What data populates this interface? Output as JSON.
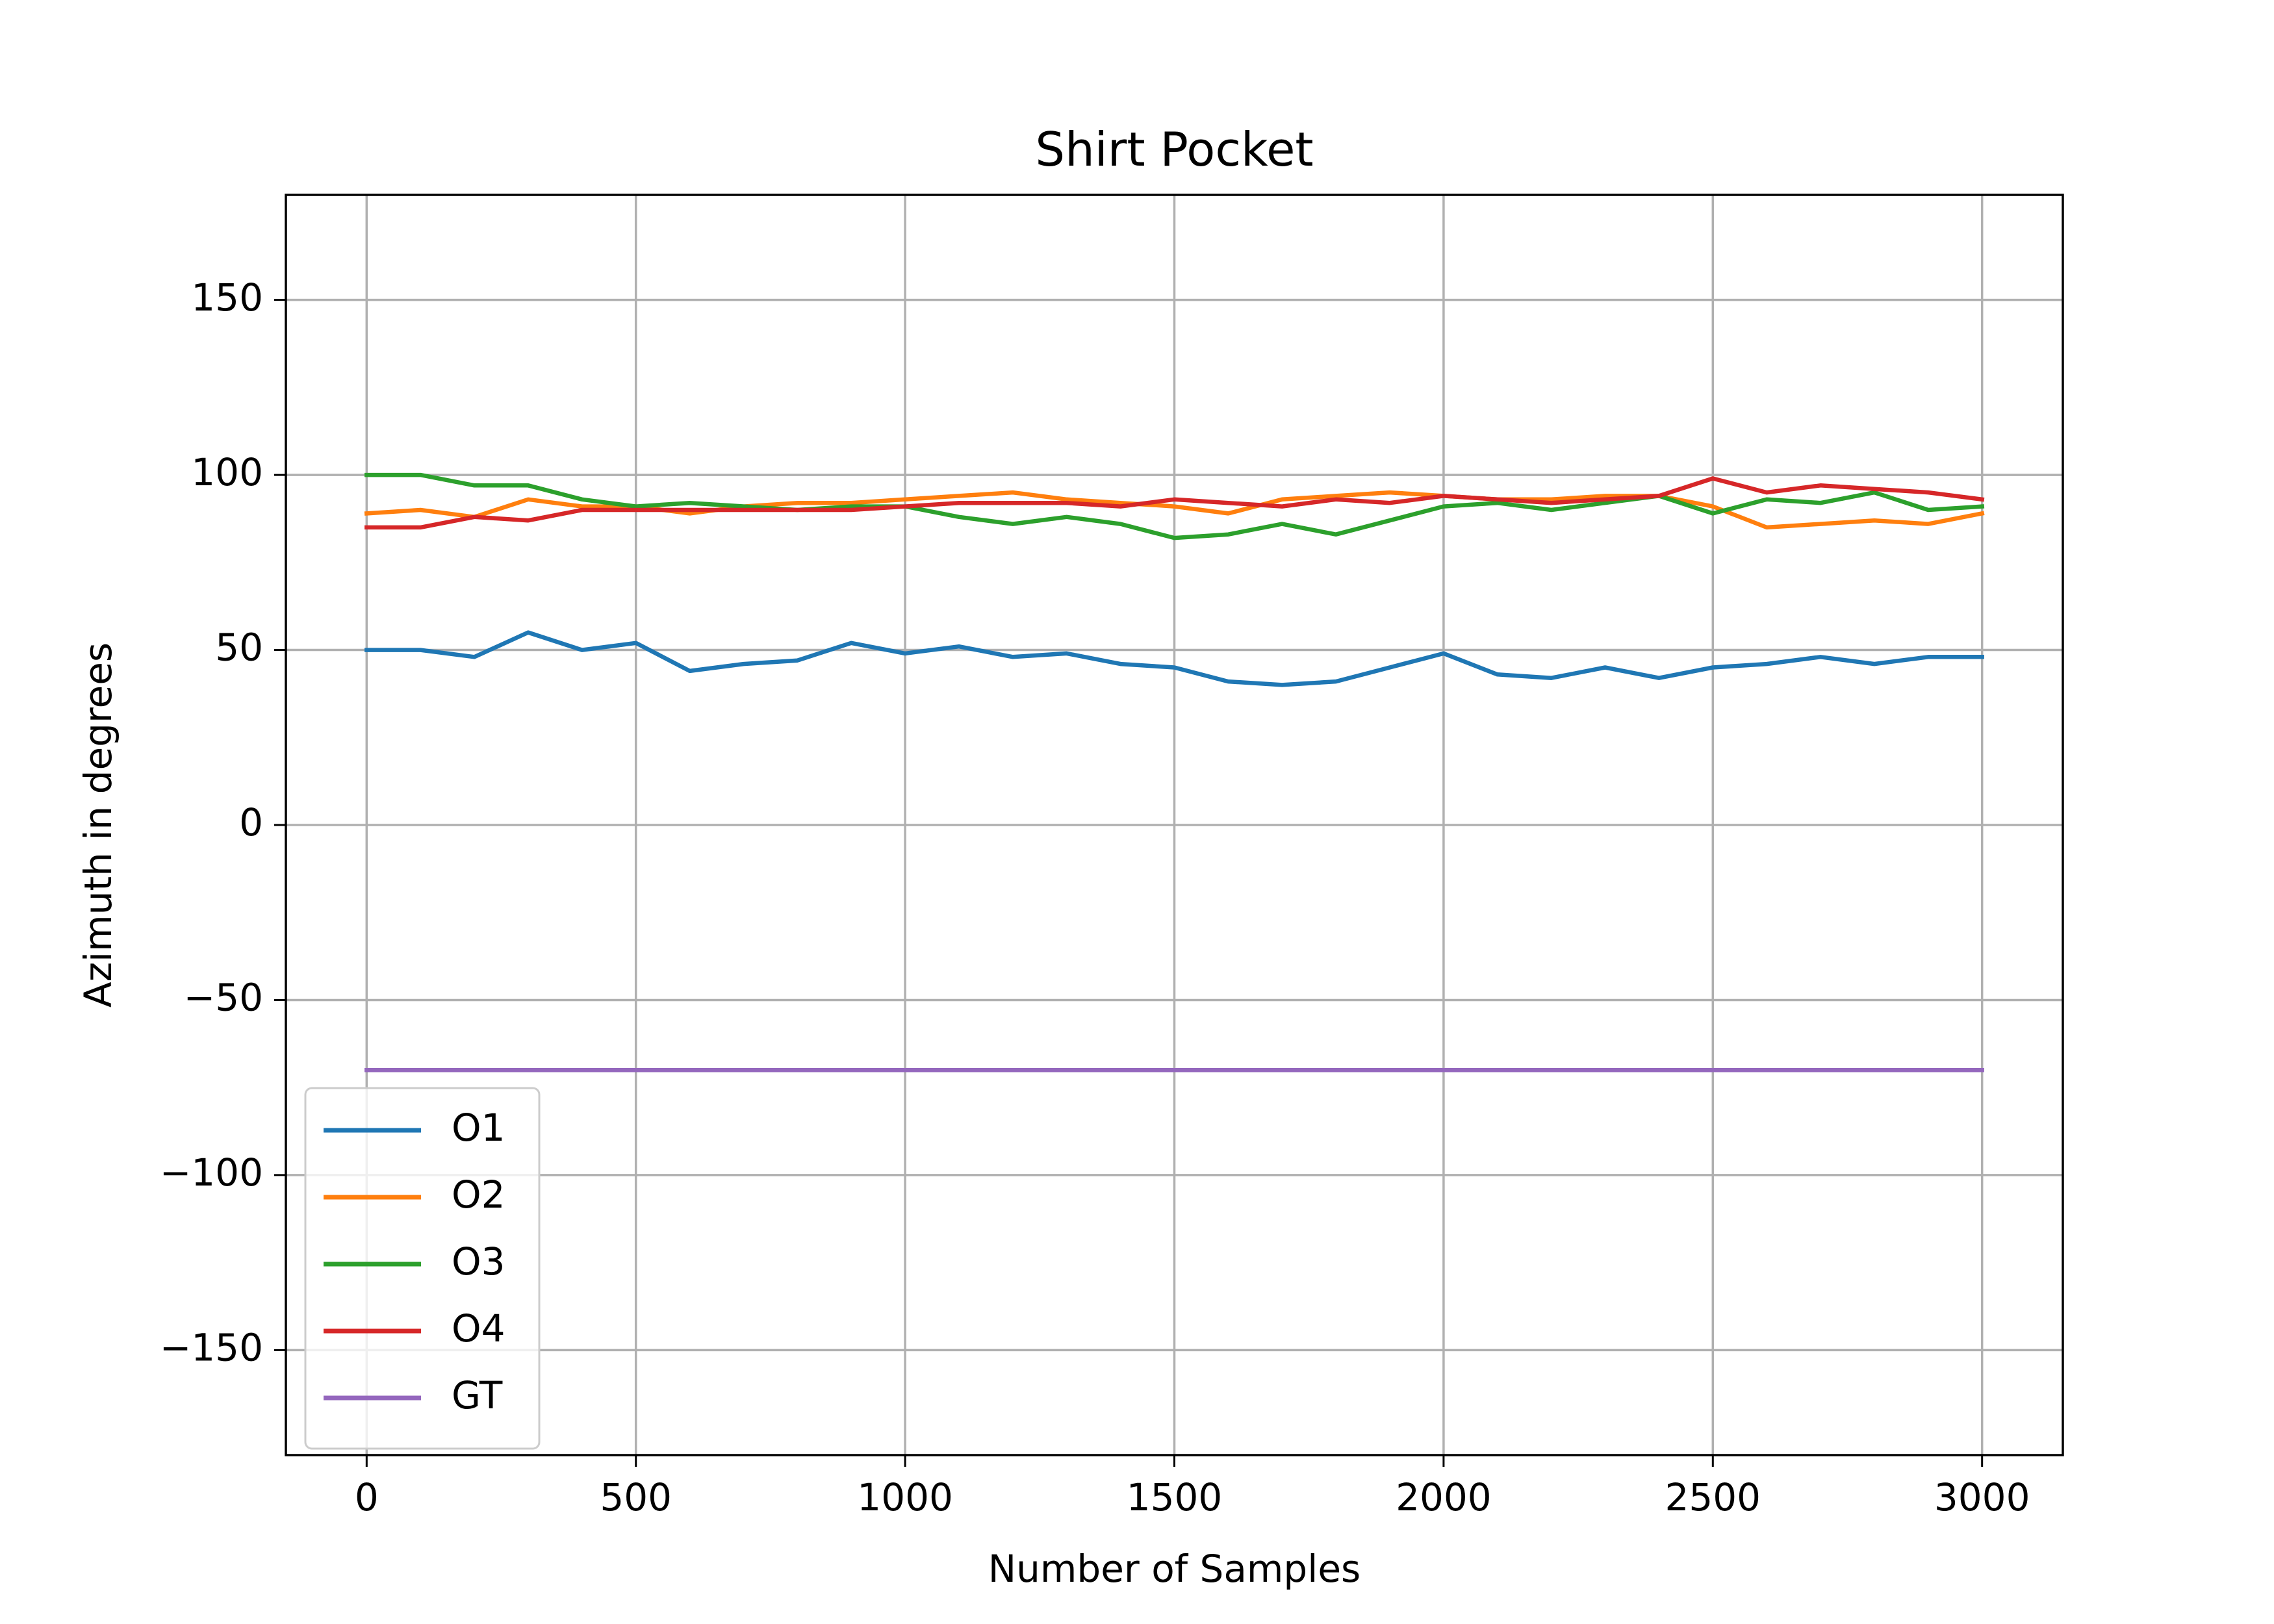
{
  "chart_data": {
    "type": "line",
    "title": "Shirt Pocket",
    "xlabel": "Number of Samples",
    "ylabel": "Azimuth in degrees",
    "xlim": [
      -150,
      3150
    ],
    "ylim": [
      -180,
      180
    ],
    "xticks": [
      0,
      500,
      1000,
      1500,
      2000,
      2500,
      3000
    ],
    "xtick_labels": [
      "0",
      "500",
      "1000",
      "1500",
      "2000",
      "2500",
      "3000"
    ],
    "yticks": [
      150,
      100,
      50,
      0,
      -50,
      -100,
      -150
    ],
    "ytick_labels": [
      "150",
      "100",
      "50",
      "0",
      "−50",
      "−100",
      "−150"
    ],
    "grid": true,
    "legend_position": "lower-left",
    "x": [
      0,
      100,
      200,
      300,
      400,
      500,
      600,
      700,
      800,
      900,
      1000,
      1100,
      1200,
      1300,
      1400,
      1500,
      1600,
      1700,
      1800,
      1900,
      2000,
      2100,
      2200,
      2300,
      2400,
      2500,
      2600,
      2700,
      2800,
      2900,
      3000
    ],
    "series": [
      {
        "name": "O1",
        "color": "#1f77b4",
        "values": [
          50,
          50,
          48,
          55,
          50,
          52,
          44,
          46,
          47,
          52,
          49,
          51,
          48,
          49,
          46,
          45,
          41,
          40,
          41,
          45,
          49,
          43,
          42,
          45,
          42,
          45,
          46,
          48,
          46,
          48,
          48
        ]
      },
      {
        "name": "O2",
        "color": "#ff7f0e",
        "values": [
          89,
          90,
          88,
          93,
          91,
          91,
          89,
          91,
          92,
          92,
          93,
          94,
          95,
          93,
          92,
          91,
          89,
          93,
          94,
          95,
          94,
          93,
          93,
          94,
          94,
          91,
          85,
          86,
          87,
          86,
          89
        ]
      },
      {
        "name": "O3",
        "color": "#2ca02c",
        "values": [
          100,
          100,
          97,
          97,
          93,
          91,
          92,
          91,
          90,
          91,
          91,
          88,
          86,
          88,
          86,
          82,
          83,
          86,
          83,
          87,
          91,
          92,
          90,
          92,
          94,
          89,
          93,
          92,
          95,
          90,
          91
        ]
      },
      {
        "name": "O4",
        "color": "#d62728",
        "values": [
          85,
          85,
          88,
          87,
          90,
          90,
          90,
          90,
          90,
          90,
          91,
          92,
          92,
          92,
          91,
          93,
          92,
          91,
          93,
          92,
          94,
          93,
          92,
          93,
          94,
          99,
          95,
          97,
          96,
          95,
          93
        ]
      },
      {
        "name": "GT",
        "color": "#9467bd",
        "values": [
          -70,
          -70,
          -70,
          -70,
          -70,
          -70,
          -70,
          -70,
          -70,
          -70,
          -70,
          -70,
          -70,
          -70,
          -70,
          -70,
          -70,
          -70,
          -70,
          -70,
          -70,
          -70,
          -70,
          -70,
          -70,
          -70,
          -70,
          -70,
          -70,
          -70,
          -70
        ]
      }
    ]
  }
}
